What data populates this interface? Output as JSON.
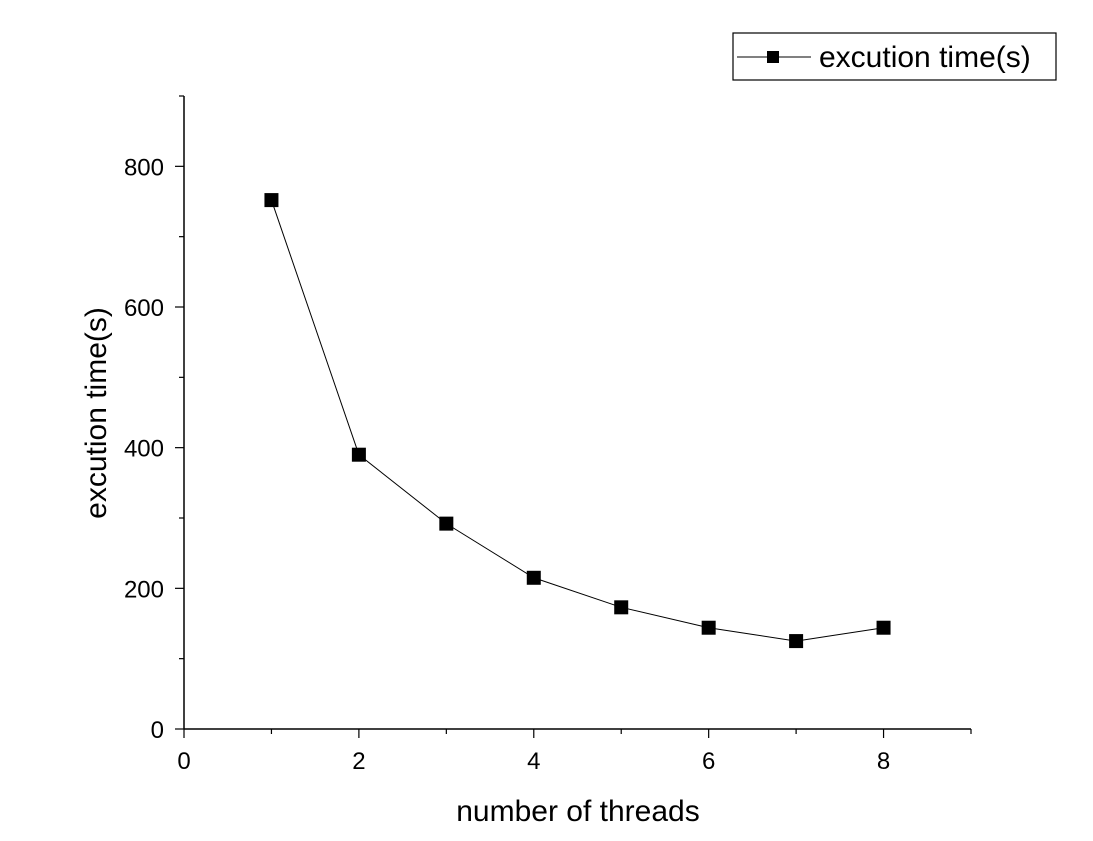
{
  "chart_data": {
    "type": "line",
    "title": "",
    "xlabel": "number of threads",
    "ylabel": "excution time(s)",
    "xlim": [
      0,
      9
    ],
    "ylim": [
      0,
      900
    ],
    "x_ticks": [
      0,
      2,
      4,
      6,
      8
    ],
    "y_ticks": [
      0,
      200,
      400,
      600,
      800
    ],
    "grid": false,
    "legend_position": "top-right",
    "series": [
      {
        "name": "excution time(s)",
        "color": "#000000",
        "marker": "square",
        "x": [
          1,
          2,
          3,
          4,
          5,
          6,
          7,
          8
        ],
        "y": [
          752,
          390,
          292,
          215,
          173,
          144,
          125,
          144
        ]
      }
    ]
  }
}
